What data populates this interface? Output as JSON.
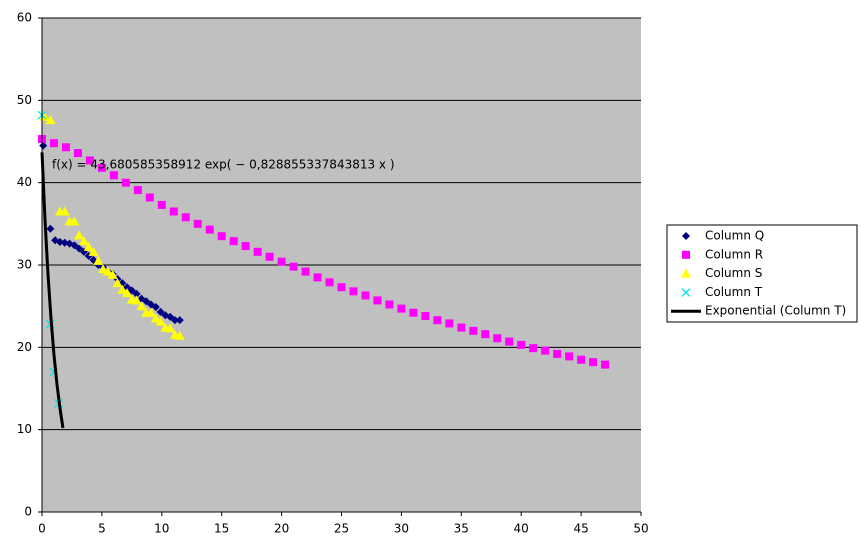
{
  "chart_data": {
    "type": "scatter",
    "annotation": "f(x) = 43,680585358912 exp( − 0,828855337843813 x )",
    "xlim": [
      0,
      50
    ],
    "xticks": [
      0,
      5,
      10,
      15,
      20,
      25,
      30,
      35,
      40,
      45,
      50
    ],
    "ylim": [
      0,
      60
    ],
    "yticks": [
      0,
      10,
      20,
      30,
      40,
      50,
      60
    ],
    "grid": true,
    "legend": "right",
    "series": [
      {
        "name": "Column Q",
        "color": "#000080",
        "marker": "diamond",
        "x": [
          0.1,
          0.7,
          1.1,
          1.5,
          1.9,
          2.3,
          2.7,
          3.1,
          3.5,
          3.9,
          4.3,
          4.7,
          5.1,
          5.5,
          5.9,
          6.3,
          6.7,
          7.1,
          7.5,
          7.9,
          8.3,
          8.7,
          9.1,
          9.5,
          9.9,
          10.3,
          10.7,
          11.1,
          11.5
        ],
        "values": [
          44.5,
          34.4,
          33.0,
          32.8,
          32.7,
          32.6,
          32.4,
          32.0,
          31.6,
          31.1,
          30.6,
          30.0,
          29.7,
          29.2,
          28.9,
          28.3,
          27.8,
          27.3,
          26.9,
          26.5,
          25.9,
          25.6,
          25.2,
          24.9,
          24.3,
          23.9,
          23.7,
          23.3,
          23.3
        ]
      },
      {
        "name": "Column R",
        "color": "#ff00ff",
        "marker": "square",
        "x": [
          0,
          1,
          2,
          3,
          4,
          5,
          6,
          7,
          8,
          9,
          10,
          11,
          12,
          13,
          14,
          15,
          16,
          17,
          18,
          19,
          20,
          21,
          22,
          23,
          24,
          25,
          26,
          27,
          28,
          29,
          30,
          31,
          32,
          33,
          34,
          35,
          36,
          37,
          38,
          39,
          40,
          41,
          42,
          43,
          44,
          45,
          46,
          47
        ],
        "values": [
          45.3,
          44.8,
          44.3,
          43.6,
          42.7,
          41.8,
          40.9,
          40.0,
          39.1,
          38.2,
          37.3,
          36.5,
          35.8,
          35.0,
          34.3,
          33.5,
          32.9,
          32.3,
          31.6,
          31.0,
          30.4,
          29.8,
          29.2,
          28.5,
          27.9,
          27.3,
          26.8,
          26.3,
          25.7,
          25.2,
          24.7,
          24.2,
          23.8,
          23.3,
          22.9,
          22.4,
          22.0,
          21.6,
          21.1,
          20.7,
          20.3,
          19.9,
          19.6,
          19.2,
          18.9,
          18.5,
          18.2,
          17.9
        ]
      },
      {
        "name": "Column S",
        "color": "#ffff00",
        "marker": "triangle",
        "x": [
          0.2,
          0.7,
          1.5,
          1.9,
          2.3,
          2.7,
          3.1,
          3.5,
          3.9,
          4.3,
          4.7,
          5.1,
          5.5,
          5.9,
          6.3,
          6.7,
          7.1,
          7.5,
          7.9,
          8.3,
          8.7,
          9.1,
          9.5,
          9.9,
          10.3,
          10.7,
          11.1,
          11.5
        ],
        "values": [
          48.0,
          47.6,
          36.5,
          36.5,
          35.3,
          35.3,
          33.6,
          32.9,
          32.2,
          31.6,
          30.5,
          29.5,
          29.2,
          28.8,
          27.8,
          27.0,
          26.6,
          25.8,
          25.7,
          25.0,
          24.2,
          24.2,
          23.5,
          23.1,
          22.4,
          22.3,
          21.5,
          21.4
        ]
      },
      {
        "name": "Column T",
        "color": "#00e5e5",
        "marker": "x",
        "x": [
          0,
          0.7,
          1.0,
          1.4
        ],
        "values": [
          48.2,
          22.8,
          17.0,
          13.2
        ]
      },
      {
        "name": "Exponential (Column T)",
        "color": "#000000",
        "marker": "line",
        "x": [
          0,
          0.25,
          0.5,
          0.75,
          1.0,
          1.25,
          1.5,
          1.75
        ],
        "values": [
          43.68,
          35.5,
          28.9,
          23.5,
          19.1,
          15.5,
          12.6,
          10.2
        ]
      }
    ]
  }
}
